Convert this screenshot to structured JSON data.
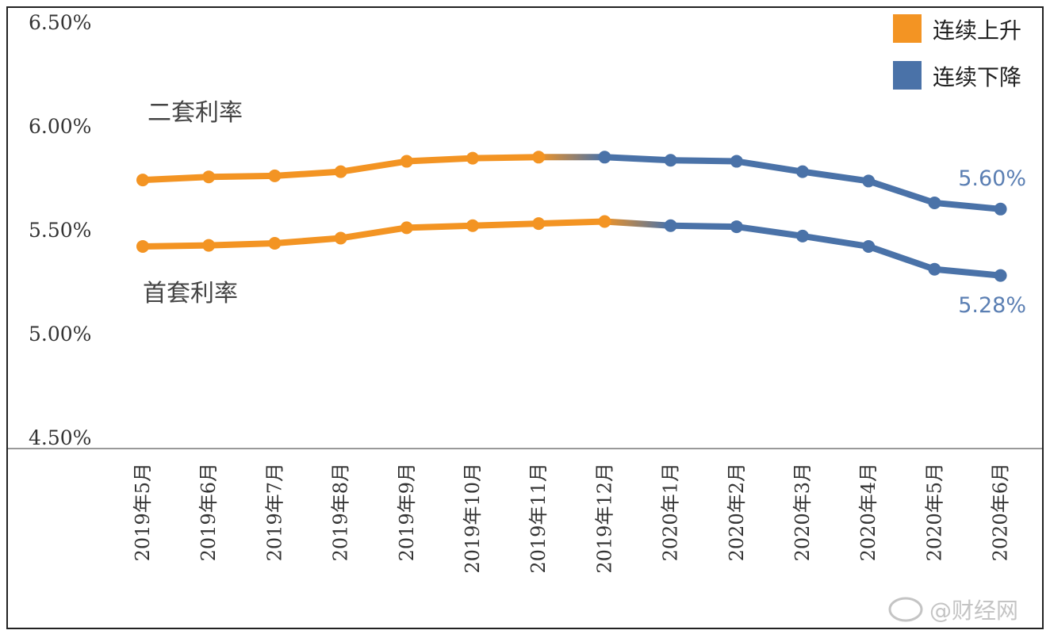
{
  "chart_data": {
    "type": "line",
    "x": [
      "2019年5月",
      "2019年6月",
      "2019年7月",
      "2019年8月",
      "2019年9月",
      "2019年10月",
      "2019年11月",
      "2019年12月",
      "2020年1月",
      "2020年2月",
      "2020年3月",
      "2020年4月",
      "2020年5月",
      "2020年6月"
    ],
    "series": [
      {
        "name": "二套利率",
        "values": [
          5.74,
          5.755,
          5.76,
          5.78,
          5.83,
          5.845,
          5.85,
          5.85,
          5.835,
          5.83,
          5.78,
          5.735,
          5.63,
          5.6
        ]
      },
      {
        "name": "首套利率",
        "values": [
          5.42,
          5.425,
          5.435,
          5.46,
          5.51,
          5.52,
          5.53,
          5.54,
          5.52,
          5.515,
          5.47,
          5.42,
          5.31,
          5.28
        ]
      }
    ],
    "ylim": [
      4.5,
      6.5
    ],
    "yticks": [
      "6.50%",
      "6.00%",
      "5.50%",
      "5.00%",
      "4.50%"
    ],
    "colors": {
      "rising": "#f39423",
      "falling": "#4a72a8"
    },
    "legend": [
      {
        "label": "连续上升",
        "color": "#f39423"
      },
      {
        "label": "连续下降",
        "color": "#4a72a8"
      }
    ],
    "legend_position": "top-right",
    "turning_point_index": 7,
    "end_labels": [
      "5.60%",
      "5.28%"
    ],
    "grid": false
  },
  "watermark": "@财经网"
}
